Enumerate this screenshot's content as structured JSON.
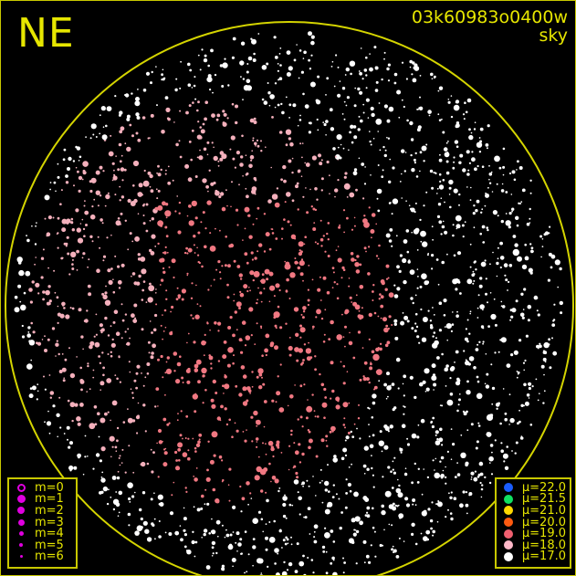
{
  "direction_label": "NE",
  "image_id": "03k60983o0400w",
  "image_type": "sky",
  "colors": {
    "frame": "#d4d400",
    "horizon_circle": "#d4d400",
    "text": "#e6e600"
  },
  "magnitude_legend": [
    {
      "label": "m=0",
      "color": "#e000e0",
      "hollow": true,
      "size": 9
    },
    {
      "label": "m=1",
      "color": "#e000e0",
      "size": 9
    },
    {
      "label": "m=2",
      "color": "#e000e0",
      "size": 8
    },
    {
      "label": "m=3",
      "color": "#e000e0",
      "size": 7
    },
    {
      "label": "m=4",
      "color": "#e000e0",
      "size": 5
    },
    {
      "label": "m=5",
      "color": "#e000e0",
      "size": 4
    },
    {
      "label": "m=6",
      "color": "#e000e0",
      "size": 3
    }
  ],
  "sky_brightness_legend": [
    {
      "label": "μ=22.0",
      "color": "#1a5cff"
    },
    {
      "label": "μ=21.5",
      "color": "#10e060"
    },
    {
      "label": "μ=21.0",
      "color": "#ffd800"
    },
    {
      "label": "μ=20.0",
      "color": "#ff5a10"
    },
    {
      "label": "μ=19.0",
      "color": "#f06070"
    },
    {
      "label": "μ=18.0",
      "color": "#ffb8c8"
    },
    {
      "label": "μ=17.0",
      "color": "#ffffff"
    }
  ]
}
